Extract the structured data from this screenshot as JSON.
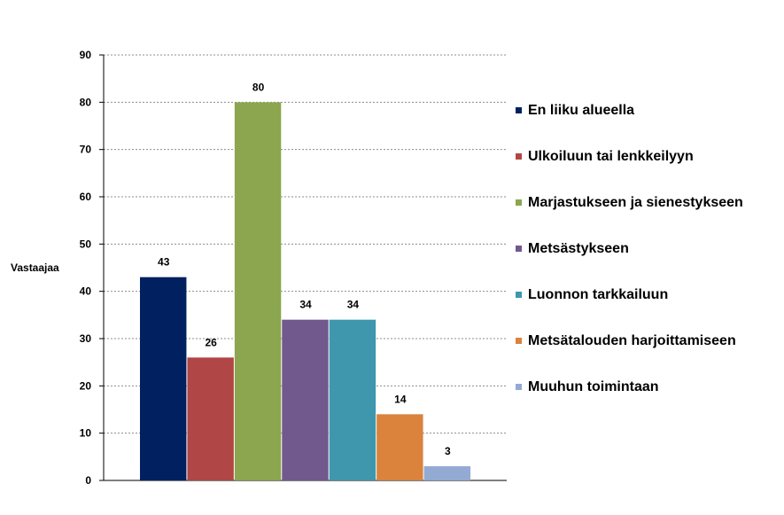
{
  "chart_data": {
    "type": "bar",
    "title": "",
    "xlabel": "",
    "ylabel": "Vastaajaa",
    "ylim": [
      0,
      90
    ],
    "yticks": [
      0,
      10,
      20,
      30,
      40,
      50,
      60,
      70,
      80,
      90
    ],
    "grid": true,
    "legend_position": "right",
    "data_labels": true,
    "series": [
      {
        "name": "En liiku alueella",
        "values": [
          43
        ],
        "color": "#002060"
      },
      {
        "name": "Ulkoiluun tai lenkkeilyyn",
        "values": [
          26
        ],
        "color": "#B04645"
      },
      {
        "name": "Marjastukseen ja sienestykseen",
        "values": [
          80
        ],
        "color": "#8BA64E"
      },
      {
        "name": "Metsästykseen",
        "values": [
          34
        ],
        "color": "#71598E"
      },
      {
        "name": "Luonnon tarkkailuun",
        "values": [
          34
        ],
        "color": "#3E97AD"
      },
      {
        "name": "Metsätalouden harjoittamiseen",
        "values": [
          14
        ],
        "color": "#DB823D"
      },
      {
        "name": "Muuhun toimintaan",
        "values": [
          3
        ],
        "color": "#93AAD3"
      }
    ]
  }
}
